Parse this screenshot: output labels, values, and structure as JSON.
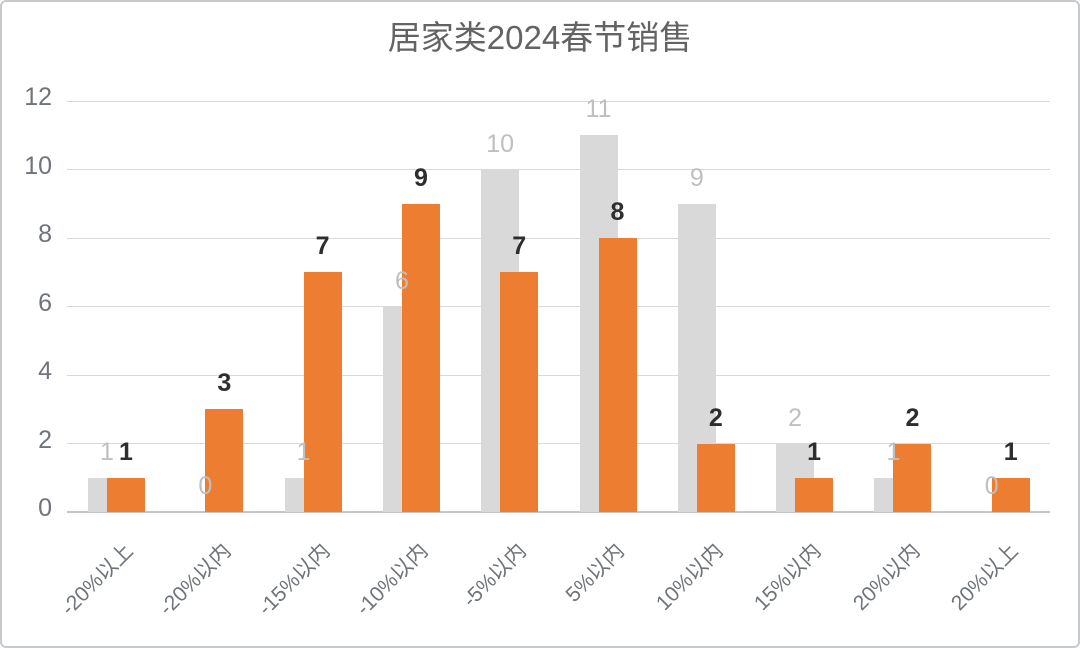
{
  "chart_data": {
    "type": "bar",
    "title": "居家类2024春节销售",
    "categories": [
      "-20%以上",
      "-20%以内",
      "-15%以内",
      "-10%以内",
      "-5%以内",
      "5%以内",
      "10%以内",
      "15%以内",
      "20%以内",
      "20%以上"
    ],
    "series": [
      {
        "name": "gray",
        "color": "#D9D9D9",
        "label_color": "#BFBFBF",
        "label_bold": false,
        "values": [
          1,
          0,
          1,
          6,
          10,
          11,
          9,
          2,
          1,
          0
        ]
      },
      {
        "name": "orange",
        "color": "#ED7D31",
        "label_color": "#2E2E2E",
        "label_bold": true,
        "values": [
          1,
          3,
          7,
          9,
          7,
          8,
          2,
          1,
          2,
          1
        ]
      }
    ],
    "ylim": [
      0,
      12
    ],
    "yticks": [
      0,
      2,
      4,
      6,
      8,
      10,
      12
    ],
    "xlabel": "",
    "ylabel": "",
    "grid": true,
    "legend": "none",
    "data_labels": true
  }
}
